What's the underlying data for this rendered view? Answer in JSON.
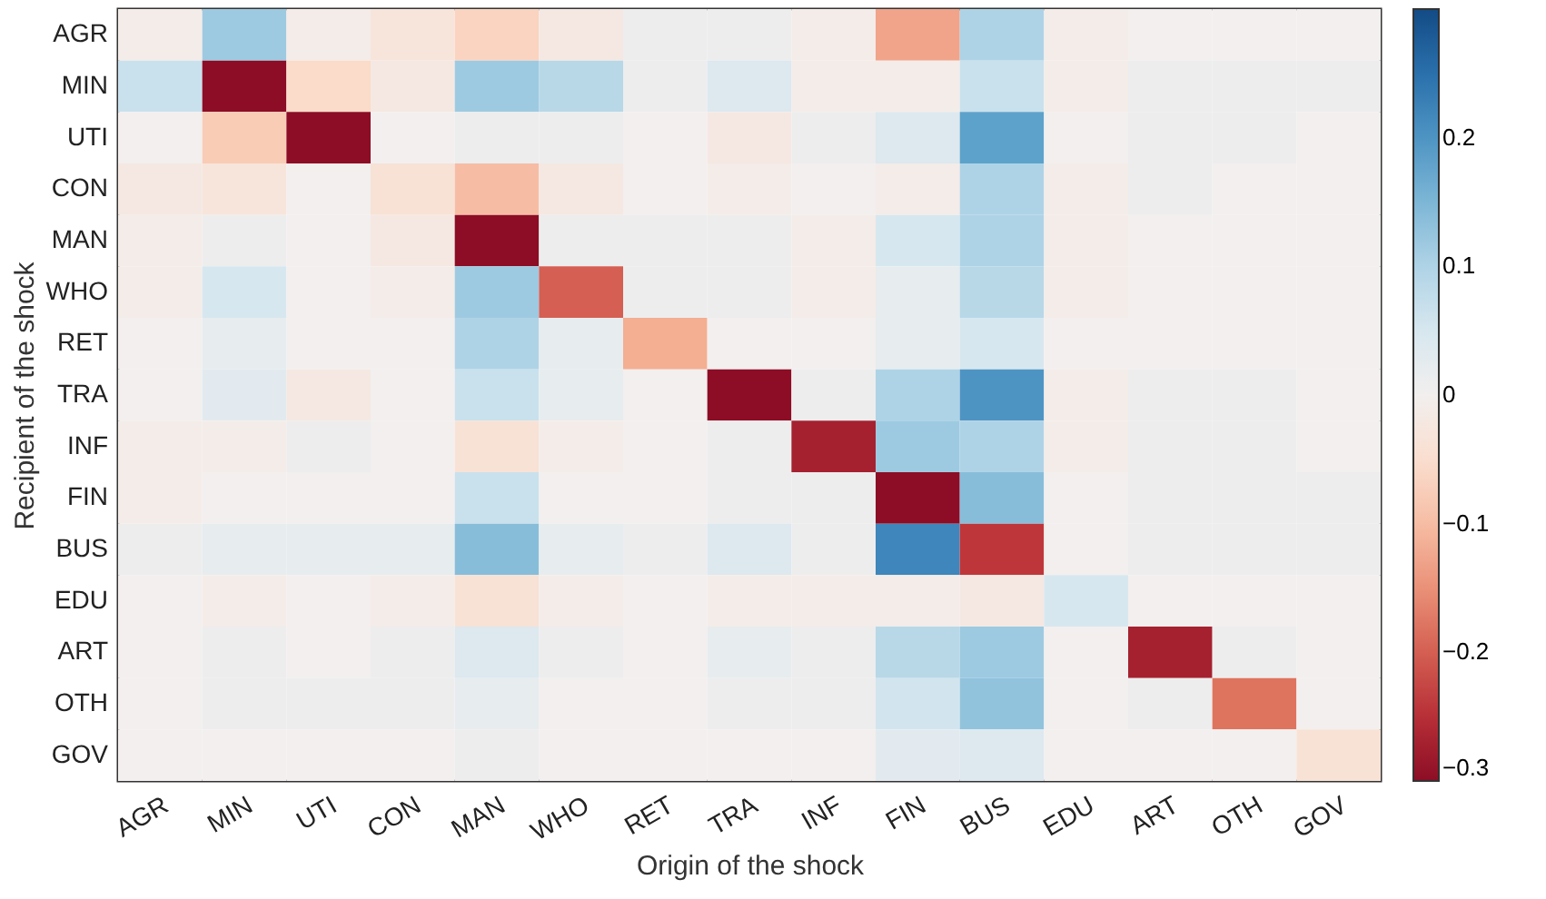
{
  "chart_data": {
    "type": "heatmap",
    "xlabel": "Origin of the shock",
    "ylabel": "Recipient of the shock",
    "categories": [
      "AGR",
      "MIN",
      "UTI",
      "CON",
      "MAN",
      "WHO",
      "RET",
      "TRA",
      "INF",
      "FIN",
      "BUS",
      "EDU",
      "ART",
      "OTH",
      "GOV"
    ],
    "y_categories": [
      "AGR",
      "MIN",
      "UTI",
      "CON",
      "MAN",
      "WHO",
      "RET",
      "TRA",
      "INF",
      "FIN",
      "BUS",
      "EDU",
      "ART",
      "OTH",
      "GOV"
    ],
    "cells": [
      [
        -0.01,
        0.12,
        -0.01,
        -0.03,
        -0.07,
        -0.02,
        0.01,
        0.01,
        -0.01,
        -0.13,
        0.1,
        -0.01,
        0,
        0,
        0
      ],
      [
        0.07,
        -0.3,
        -0.06,
        -0.02,
        0.12,
        0.09,
        0.01,
        0.04,
        -0.01,
        -0.01,
        0.07,
        -0.01,
        0.01,
        0.01,
        0.01
      ],
      [
        0,
        -0.08,
        -0.3,
        0,
        0.01,
        0.01,
        0,
        -0.02,
        0.01,
        0.04,
        0.18,
        0,
        0.01,
        0.01,
        0
      ],
      [
        -0.02,
        -0.03,
        0,
        -0.04,
        -0.1,
        -0.02,
        0,
        -0.01,
        0,
        -0.01,
        0.1,
        -0.01,
        0.01,
        0,
        0
      ],
      [
        -0.01,
        0.01,
        0,
        -0.02,
        -0.3,
        0.01,
        0.01,
        0.01,
        -0.01,
        0.05,
        0.1,
        -0.01,
        0,
        0,
        0
      ],
      [
        -0.01,
        0.05,
        0,
        -0.01,
        0.12,
        -0.2,
        0.01,
        0.01,
        -0.01,
        0.02,
        0.09,
        -0.01,
        0,
        0,
        0
      ],
      [
        0,
        0.02,
        0,
        0,
        0.1,
        0.02,
        -0.12,
        0,
        0,
        0.02,
        0.05,
        0,
        0,
        0,
        0
      ],
      [
        0,
        0.03,
        -0.02,
        0,
        0.07,
        0.02,
        0,
        -0.3,
        0.01,
        0.1,
        0.2,
        -0.01,
        0.01,
        0.01,
        0
      ],
      [
        -0.01,
        -0.01,
        0.01,
        0,
        -0.04,
        -0.01,
        0,
        0.01,
        -0.27,
        0.12,
        0.1,
        -0.01,
        0.01,
        0.01,
        0
      ],
      [
        -0.01,
        0,
        0,
        0,
        0.07,
        0,
        0,
        0.01,
        0.01,
        -0.3,
        0.14,
        0,
        0.01,
        0.01,
        0.01
      ],
      [
        0.01,
        0.02,
        0.02,
        0.02,
        0.14,
        0.02,
        0.01,
        0.04,
        0.01,
        0.22,
        -0.24,
        0,
        0.01,
        0.01,
        0.01
      ],
      [
        0,
        -0.01,
        0,
        -0.01,
        -0.04,
        -0.01,
        0,
        -0.01,
        -0.01,
        -0.01,
        -0.02,
        0.05,
        0,
        0,
        0
      ],
      [
        0,
        0.01,
        0,
        0.01,
        0.04,
        0.01,
        0,
        0.02,
        0.01,
        0.09,
        0.12,
        0,
        -0.27,
        0.01,
        0
      ],
      [
        0,
        0.01,
        0.01,
        0.01,
        0.02,
        0,
        0,
        0.01,
        0.01,
        0.06,
        0.13,
        0,
        0.01,
        -0.18,
        0
      ],
      [
        0,
        0,
        0,
        0,
        0.01,
        0,
        0,
        0,
        0,
        0.03,
        0.04,
        0,
        0,
        0,
        -0.04
      ]
    ],
    "clim": [
      -0.3,
      0.3
    ],
    "cticks": [
      -0.3,
      -0.2,
      -0.1,
      0,
      0.1,
      0.2
    ]
  }
}
